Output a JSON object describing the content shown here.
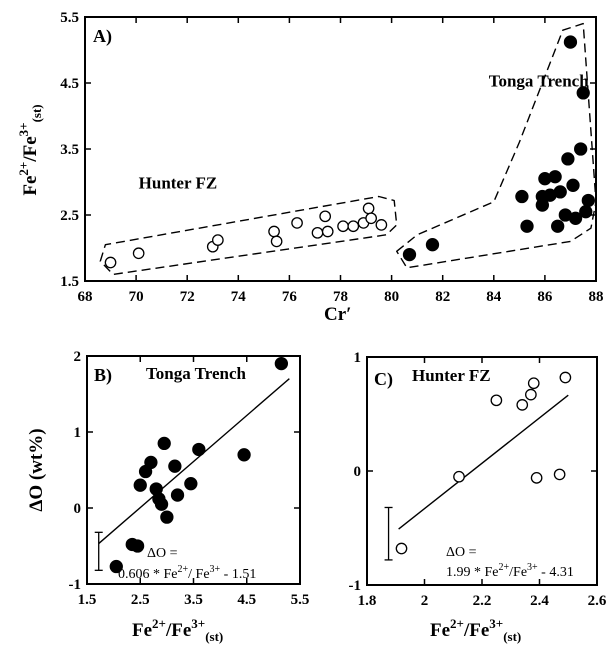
{
  "chart_data": [
    {
      "panel": "A)",
      "type": "scatter",
      "xlabel_main": "Cr",
      "xlabel_prime": "′",
      "ylabel_parts": [
        "Fe",
        "2+",
        "/Fe",
        "3+",
        "(st)"
      ],
      "xlim": [
        68,
        88
      ],
      "ylim": [
        1.5,
        5.5
      ],
      "xticks": [
        68,
        70,
        72,
        74,
        76,
        78,
        80,
        82,
        84,
        86,
        88
      ],
      "yticks": [
        1.5,
        2.5,
        3.5,
        4.5,
        5.5
      ],
      "annotations": [
        {
          "text": "Hunter FZ",
          "x": 70.1,
          "y": 2.9
        },
        {
          "text": "Tonga Trench",
          "x": 83.8,
          "y": 4.45
        }
      ],
      "series": [
        {
          "marker": "open-circle",
          "points": [
            [
              69.0,
              1.78
            ],
            [
              70.1,
              1.92
            ],
            [
              73.0,
              2.02
            ],
            [
              73.2,
              2.12
            ],
            [
              75.4,
              2.25
            ],
            [
              75.5,
              2.1
            ],
            [
              76.3,
              2.38
            ],
            [
              77.1,
              2.23
            ],
            [
              77.4,
              2.48
            ],
            [
              77.5,
              2.25
            ],
            [
              78.1,
              2.33
            ],
            [
              78.5,
              2.33
            ],
            [
              78.9,
              2.38
            ],
            [
              79.1,
              2.6
            ],
            [
              79.2,
              2.45
            ],
            [
              79.6,
              2.35
            ]
          ]
        },
        {
          "marker": "filled-circle",
          "points": [
            [
              80.7,
              1.9
            ],
            [
              81.6,
              2.05
            ],
            [
              85.1,
              2.78
            ],
            [
              85.3,
              2.33
            ],
            [
              85.9,
              2.78
            ],
            [
              85.9,
              2.65
            ],
            [
              86.0,
              3.05
            ],
            [
              86.2,
              2.8
            ],
            [
              86.4,
              3.08
            ],
            [
              86.5,
              2.33
            ],
            [
              86.6,
              2.85
            ],
            [
              86.8,
              2.5
            ],
            [
              86.9,
              3.35
            ],
            [
              87.0,
              5.12
            ],
            [
              87.1,
              2.95
            ],
            [
              87.2,
              2.45
            ],
            [
              87.4,
              3.5
            ],
            [
              87.5,
              4.35
            ],
            [
              87.6,
              2.55
            ],
            [
              87.7,
              2.72
            ]
          ]
        }
      ],
      "envelopes": [
        {
          "name": "Hunter FZ",
          "polygon": [
            [
              68.6,
              1.8
            ],
            [
              68.8,
              2.05
            ],
            [
              79.5,
              2.78
            ],
            [
              80.1,
              2.72
            ],
            [
              80.2,
              2.35
            ],
            [
              79.8,
              2.2
            ],
            [
              69.1,
              1.6
            ]
          ]
        },
        {
          "name": "Tonga Trench",
          "polygon": [
            [
              80.2,
              1.95
            ],
            [
              81.0,
              2.2
            ],
            [
              84.0,
              2.7
            ],
            [
              85.0,
              3.6
            ],
            [
              86.7,
              5.3
            ],
            [
              87.5,
              5.4
            ],
            [
              88.0,
              2.7
            ],
            [
              87.8,
              2.3
            ],
            [
              87.0,
              2.1
            ],
            [
              80.6,
              1.7
            ]
          ]
        }
      ]
    },
    {
      "panel": "B)",
      "type": "scatter",
      "title": "Tonga Trench",
      "ylabel": "ΔO (wt%)",
      "xlim": [
        1.5,
        5.5
      ],
      "ylim": [
        -1,
        2
      ],
      "xticks": [
        1.5,
        2.5,
        3.5,
        4.5,
        5.5
      ],
      "yticks": [
        -1,
        0,
        1,
        2
      ],
      "ytick_labels": [
        "-1",
        "0",
        "1",
        "2"
      ],
      "equation_line1": "ΔO =",
      "equation_line2_parts": [
        "0.606 * Fe",
        "2+",
        "/ Fe",
        "3+",
        " - 1.51"
      ],
      "fit": {
        "slope": 0.606,
        "intercept": -1.51,
        "x_range": [
          1.72,
          5.3
        ]
      },
      "error_bar": {
        "x": 1.72,
        "y_low": -0.82,
        "y_high": -0.32
      },
      "series": [
        {
          "marker": "filled-circle",
          "points": [
            [
              2.05,
              -0.77
            ],
            [
              2.35,
              -0.48
            ],
            [
              2.45,
              -0.5
            ],
            [
              2.5,
              0.3
            ],
            [
              2.6,
              0.48
            ],
            [
              2.7,
              0.6
            ],
            [
              2.8,
              0.25
            ],
            [
              2.85,
              0.12
            ],
            [
              2.9,
              0.05
            ],
            [
              2.95,
              0.85
            ],
            [
              3.0,
              -0.12
            ],
            [
              3.15,
              0.55
            ],
            [
              3.2,
              0.17
            ],
            [
              3.45,
              0.32
            ],
            [
              3.6,
              0.77
            ],
            [
              4.45,
              0.7
            ],
            [
              5.15,
              1.9
            ]
          ]
        }
      ]
    },
    {
      "panel": "C)",
      "type": "scatter",
      "title": "Hunter FZ",
      "xlim": [
        1.8,
        2.6
      ],
      "ylim": [
        -1,
        1
      ],
      "xticks": [
        1.8,
        2.0,
        2.2,
        2.4,
        2.6
      ],
      "xtick_labels": [
        "1.8",
        "2",
        "2.2",
        "2.4",
        "2.6"
      ],
      "yticks": [
        -1,
        0,
        1
      ],
      "ytick_labels": [
        "-1",
        "0",
        "1"
      ],
      "equation_line1": "ΔO =",
      "equation_line2_parts": [
        "1.99 * Fe",
        "2+",
        "/Fe",
        "3+",
        " - 4.31"
      ],
      "fit": {
        "slope": 1.99,
        "intercept": -4.31,
        "x_range": [
          1.91,
          2.5
        ]
      },
      "error_bar": {
        "x": 1.875,
        "y_low": -0.78,
        "y_high": -0.32
      },
      "series": [
        {
          "marker": "open-circle",
          "points": [
            [
              1.92,
              -0.68
            ],
            [
              2.12,
              -0.05
            ],
            [
              2.25,
              0.62
            ],
            [
              2.34,
              0.58
            ],
            [
              2.37,
              0.67
            ],
            [
              2.38,
              0.77
            ],
            [
              2.39,
              -0.06
            ],
            [
              2.47,
              -0.03
            ],
            [
              2.49,
              0.82
            ]
          ]
        }
      ]
    }
  ],
  "shared_xlabel_parts": [
    "Fe",
    "2+",
    "/Fe",
    "3+",
    "(st)"
  ]
}
